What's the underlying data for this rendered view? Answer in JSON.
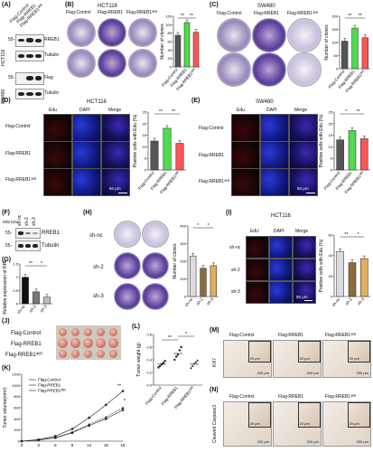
{
  "panels": {
    "A": {
      "label": "(A)",
      "cell_lines": [
        "HCT116",
        "SW480"
      ],
      "conditions": [
        "Flag-Control",
        "Flag-RREB1",
        "Flag-RREB1³ᴷᴿ"
      ],
      "blots": [
        "RREB1",
        "Tubulin",
        "Flag",
        "Tubulin"
      ],
      "mw": [
        "55-",
        "55-"
      ]
    },
    "B": {
      "label": "(B)",
      "title": "HCT116",
      "rows": [
        "Flag-Control",
        "Flag-RREB1",
        "Flag-RREB1³ᴷᴿ"
      ],
      "ylabel": "Number of clones",
      "sig": [
        "**",
        "**"
      ],
      "chart_data": {
        "type": "bar",
        "categories": [
          "Flag-Control",
          "Flag-RREB1",
          "Flag-RREB1³ᴷᴿ"
        ],
        "values": [
          75,
          105,
          82
        ],
        "colors": [
          "#555555",
          "#4ddc4d",
          "#ff5555"
        ],
        "ylim": [
          0,
          120
        ],
        "yticks": [
          0,
          20,
          40,
          60,
          80,
          100,
          120
        ]
      }
    },
    "C": {
      "label": "(C)",
      "title": "SW480",
      "rows": [
        "Flag-Control",
        "Flag-RREB1",
        "Flag-RREB1³ᴷᴿ"
      ],
      "ylabel": "Number of clones",
      "sig": [
        "**",
        "**"
      ],
      "chart_data": {
        "type": "bar",
        "categories": [
          "Flag-Control",
          "Flag-RREB1",
          "Flag-RREB1³ᴷᴿ"
        ],
        "values": [
          105,
          155,
          118
        ],
        "colors": [
          "#555555",
          "#4ddc4d",
          "#ff5555"
        ],
        "ylim": [
          0,
          200
        ],
        "yticks": [
          0,
          50,
          100,
          150,
          200
        ]
      }
    },
    "D": {
      "label": "(D)",
      "title": "HCT116",
      "cols": [
        "Edu",
        "DAPI",
        "Merge"
      ],
      "rows": [
        "Flag-Control",
        "Flag-RREB1",
        "Flag-RREB1³ᴷᴿ"
      ],
      "scalebar": "50 μm",
      "ylabel": "Positive cells with Edu (%)",
      "sig": [
        "**",
        "**"
      ],
      "chart_data": {
        "type": "bar",
        "categories": [
          "Flag-Control",
          "Flag-RREB1",
          "Flag-RREB1³ᴷᴿ"
        ],
        "values": [
          12.5,
          18,
          11.5
        ],
        "colors": [
          "#555555",
          "#4ddc4d",
          "#ff5555"
        ],
        "ylim": [
          0,
          25
        ],
        "yticks": [
          0,
          5,
          10,
          15,
          20,
          25
        ]
      }
    },
    "E": {
      "label": "(E)",
      "title": "SW480",
      "cols": [
        "Edu",
        "DAPI",
        "Merge"
      ],
      "rows": [
        "Flag-Control",
        "Flag-RREB1",
        "Flag-RREB1³ᴷᴿ"
      ],
      "scalebar": "50 μm",
      "ylabel": "Positive cells with Edu (%)",
      "sig": [
        "*",
        "**"
      ],
      "chart_data": {
        "type": "bar",
        "categories": [
          "Flag-Control",
          "Flag-RREB1",
          "Flag-RREB1³ᴷᴿ"
        ],
        "values": [
          13,
          17,
          13.5
        ],
        "colors": [
          "#555555",
          "#4ddc4d",
          "#ff5555"
        ],
        "ylim": [
          0,
          25
        ],
        "yticks": [
          0,
          5,
          10,
          15,
          20,
          25
        ]
      }
    },
    "F": {
      "label": "(F)",
      "mw_header": "MW kDa",
      "lanes": [
        "sh-nc",
        "sh-2",
        "sh-3"
      ],
      "blots": [
        "RREB1",
        "Tubulin"
      ],
      "mw": [
        "55-",
        "55-"
      ]
    },
    "G": {
      "label": "(G)",
      "ylabel": "Relative expression of RREB1",
      "sig": [
        "**",
        "*"
      ],
      "chart_data": {
        "type": "bar",
        "categories": [
          "sh-nc",
          "sh-2",
          "sh-3"
        ],
        "values": [
          1.0,
          0.45,
          0.25
        ],
        "colors": [
          "#111111",
          "#777777",
          "#bbbbbb"
        ],
        "ylim": [
          0,
          1.5
        ],
        "yticks": [
          0.0,
          0.5,
          1.0,
          1.5
        ]
      }
    },
    "H": {
      "label": "(H)",
      "rows": [
        "sh-nc",
        "sh-2",
        "sh-3"
      ],
      "ylabel": "Number of clones",
      "sig": [
        "*",
        "*"
      ],
      "chart_data": {
        "type": "bar",
        "categories": [
          "sh-nc",
          "sh-2",
          "sh-3"
        ],
        "values": [
          230,
          160,
          175
        ],
        "colors": [
          "#dddddd",
          "#8a6d3b",
          "#e0b060"
        ],
        "ylim": [
          0,
          400
        ],
        "yticks": [
          0,
          100,
          200,
          300,
          400
        ]
      }
    },
    "I": {
      "label": "(I)",
      "title": "HCT116",
      "cols": [
        "EdU",
        "DAPI",
        "Merge"
      ],
      "rows": [
        "sh-nc",
        "sh-2",
        "sh-3"
      ],
      "scalebar": "50 μm",
      "ylabel": "Positive cells with Edu (%)",
      "sig": [
        "**",
        "*"
      ],
      "chart_data": {
        "type": "bar",
        "categories": [
          "sh-nc",
          "sh-2",
          "sh-3"
        ],
        "values": [
          44,
          33,
          37
        ],
        "colors": [
          "#dddddd",
          "#8a6d3b",
          "#e0b060"
        ],
        "ylim": [
          0,
          60
        ],
        "yticks": [
          0,
          20,
          40,
          60
        ]
      }
    },
    "J": {
      "label": "(J)",
      "rows": [
        "Flag-Control",
        "Flag-RREB1",
        "Flag-RREB1³ᴷᴿ"
      ]
    },
    "K": {
      "label": "(K)",
      "ylabel": "Tumor volume(mm³)",
      "legend": [
        "Flag-Control",
        "Flag-RREB1",
        "Flag-RREB1³ᴷᴿ"
      ],
      "sig": [
        "**",
        "*"
      ],
      "chart_data": {
        "type": "line",
        "x": [
          0,
          3,
          6,
          9,
          12,
          15,
          18
        ],
        "series": [
          {
            "name": "Flag-Control",
            "values": [
              0,
              20,
              60,
              150,
              280,
              400,
              560
            ]
          },
          {
            "name": "Flag-RREB1",
            "values": [
              0,
              30,
              90,
              220,
              420,
              650,
              900
            ]
          },
          {
            "name": "Flag-RREB1³ᴷᴿ",
            "values": [
              0,
              22,
              65,
              160,
              300,
              430,
              600
            ]
          }
        ],
        "ylim": [
          0,
          1200
        ],
        "yticks": [
          0,
          200,
          400,
          600,
          800,
          1000,
          1200
        ]
      }
    },
    "L": {
      "label": "(L)",
      "ylabel": "Tumor weight (g)",
      "sig": [
        "**",
        "*"
      ],
      "chart_data": {
        "type": "scatter",
        "categories": [
          "Flag-Control",
          "Flag-RREB1",
          "Flag-RREB1³ᴷᴿ"
        ],
        "points": [
          [
            0.28,
            0.3,
            0.33,
            0.35,
            0.38
          ],
          [
            0.4,
            0.45,
            0.48,
            0.55,
            0.6
          ],
          [
            0.27,
            0.3,
            0.34,
            0.36,
            0.39
          ]
        ],
        "means": [
          0.33,
          0.5,
          0.33
        ],
        "ylim": [
          0.0,
          0.8
        ],
        "yticks": [
          0.0,
          0.2,
          0.4,
          0.6,
          0.8
        ]
      }
    },
    "M": {
      "label": "(M)",
      "stain": "Ki67",
      "cols": [
        "Flag-Control",
        "Flag-RREB1",
        "Flag-RREB1³ᴷᴿ"
      ],
      "scale_small": "20 μm",
      "scale_large": "200 μm"
    },
    "N": {
      "label": "(N)",
      "stain": "Cleaved Caspase3",
      "cols": [
        "Flag-Control",
        "Flag-RREB1",
        "Flag-RREB1³ᴷᴿ"
      ],
      "scale_small": "20 μm",
      "scale_large": "200 μm"
    }
  }
}
